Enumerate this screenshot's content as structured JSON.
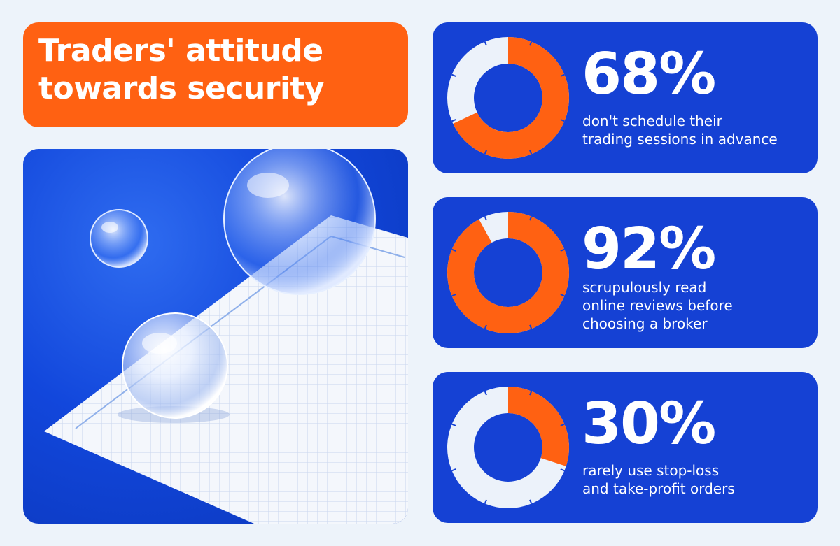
{
  "title": {
    "lines": [
      "Traders' attitude",
      "towards security"
    ]
  },
  "colors": {
    "orange": "#ff6112",
    "blue": "#1541d4",
    "ring_empty": "#ecf2fa",
    "background": "#edf3fa"
  },
  "chart_data": [
    {
      "type": "pie",
      "value": 68,
      "label": "68%",
      "description": [
        "don't schedule their",
        "trading sessions in advance"
      ]
    },
    {
      "type": "pie",
      "value": 92,
      "label": "92%",
      "description": [
        "scrupulously read",
        "online reviews before",
        "choosing a broker"
      ]
    },
    {
      "type": "pie",
      "value": 30,
      "label": "30%",
      "description": [
        "rarely use stop-loss",
        "and take-profit orders"
      ]
    }
  ]
}
